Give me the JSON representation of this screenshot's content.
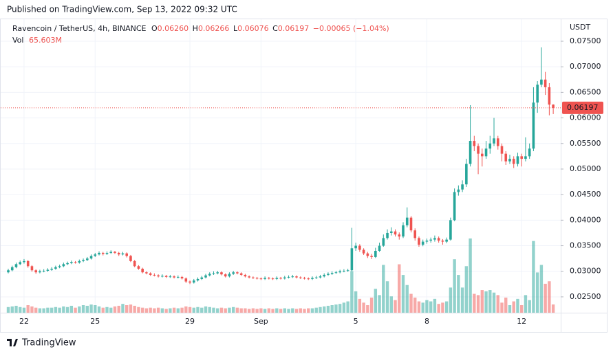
{
  "header": "Published on TradingView.com, Sep 13, 2022 09:32 UTC",
  "footer": "TradingView",
  "chart_data": {
    "type": "candlestick",
    "legend": {
      "symbol": "Ravencoin / TetherUS, 4h, BINANCE",
      "o_label": "O",
      "open": "0.06260",
      "h_label": "H",
      "high": "0.06266",
      "l_label": "L",
      "low": "0.06076",
      "c_label": "C",
      "close": "0.06197",
      "change": "−0.00065 (−1.04%)",
      "vol_label": "Vol",
      "volume": "65.603M"
    },
    "y_axis_label": "USDT",
    "last_price": {
      "value": 0.06197,
      "label": "0.06197"
    },
    "up_color": "#26a69a",
    "down_color": "#ef5350",
    "grid": true,
    "ylim": [
      0.0219,
      0.0793
    ],
    "yticks": [
      {
        "value": 0.025,
        "label": "0.02500"
      },
      {
        "value": 0.03,
        "label": "0.03000"
      },
      {
        "value": 0.035,
        "label": "0.03500"
      },
      {
        "value": 0.04,
        "label": "0.04000"
      },
      {
        "value": 0.045,
        "label": "0.04500"
      },
      {
        "value": 0.05,
        "label": "0.05000"
      },
      {
        "value": 0.055,
        "label": "0.05500"
      },
      {
        "value": 0.06,
        "label": "0.06000"
      },
      {
        "value": 0.065,
        "label": "0.06500"
      },
      {
        "value": 0.07,
        "label": "0.07000"
      },
      {
        "value": 0.075,
        "label": "0.07500"
      }
    ],
    "xticks": [
      {
        "value": 4,
        "label": "22"
      },
      {
        "value": 22,
        "label": "25"
      },
      {
        "value": 46,
        "label": "29"
      },
      {
        "value": 64,
        "label": "Sep"
      },
      {
        "value": 88,
        "label": "5"
      },
      {
        "value": 106,
        "label": "8"
      },
      {
        "value": 130,
        "label": "12"
      }
    ],
    "candles": [
      [
        0.0298,
        0.0305,
        0.0296,
        0.0302
      ],
      [
        0.0302,
        0.0311,
        0.03,
        0.0308
      ],
      [
        0.0308,
        0.0317,
        0.0306,
        0.0314
      ],
      [
        0.0314,
        0.0321,
        0.0312,
        0.0318
      ],
      [
        0.0318,
        0.0324,
        0.0315,
        0.032
      ],
      [
        0.032,
        0.0322,
        0.0307,
        0.031
      ],
      [
        0.031,
        0.0312,
        0.0299,
        0.0302
      ],
      [
        0.0302,
        0.0304,
        0.0295,
        0.0298
      ],
      [
        0.0298,
        0.0303,
        0.0296,
        0.03
      ],
      [
        0.03,
        0.0304,
        0.0298,
        0.0301
      ],
      [
        0.0301,
        0.0306,
        0.0299,
        0.0303
      ],
      [
        0.0303,
        0.0308,
        0.0301,
        0.0305
      ],
      [
        0.0305,
        0.0311,
        0.0303,
        0.0308
      ],
      [
        0.0308,
        0.0313,
        0.0306,
        0.031
      ],
      [
        0.031,
        0.0317,
        0.0308,
        0.0314
      ],
      [
        0.0314,
        0.0319,
        0.0312,
        0.0316
      ],
      [
        0.0316,
        0.0321,
        0.0314,
        0.0318
      ],
      [
        0.0318,
        0.032,
        0.0315,
        0.0317
      ],
      [
        0.0317,
        0.0323,
        0.0315,
        0.032
      ],
      [
        0.032,
        0.0325,
        0.0318,
        0.0322
      ],
      [
        0.0322,
        0.0328,
        0.032,
        0.0325
      ],
      [
        0.0325,
        0.0333,
        0.0323,
        0.033
      ],
      [
        0.033,
        0.0336,
        0.0328,
        0.0333
      ],
      [
        0.0333,
        0.0339,
        0.0331,
        0.0336
      ],
      [
        0.0336,
        0.0338,
        0.0331,
        0.0334
      ],
      [
        0.0334,
        0.0339,
        0.0332,
        0.0336
      ],
      [
        0.0336,
        0.0341,
        0.0334,
        0.0338
      ],
      [
        0.0338,
        0.034,
        0.0334,
        0.0336
      ],
      [
        0.0336,
        0.0338,
        0.033,
        0.0333
      ],
      [
        0.0333,
        0.0338,
        0.0331,
        0.0335
      ],
      [
        0.0335,
        0.0337,
        0.0327,
        0.033
      ],
      [
        0.033,
        0.0332,
        0.0318,
        0.032
      ],
      [
        0.032,
        0.0322,
        0.0308,
        0.031
      ],
      [
        0.031,
        0.0312,
        0.0303,
        0.0305
      ],
      [
        0.0305,
        0.0307,
        0.0296,
        0.0298
      ],
      [
        0.0298,
        0.03,
        0.0294,
        0.0296
      ],
      [
        0.0296,
        0.0298,
        0.0291,
        0.0293
      ],
      [
        0.0293,
        0.0296,
        0.029,
        0.0292
      ],
      [
        0.0292,
        0.0294,
        0.0288,
        0.029
      ],
      [
        0.029,
        0.0294,
        0.0288,
        0.0291
      ],
      [
        0.0291,
        0.0293,
        0.0287,
        0.0289
      ],
      [
        0.0289,
        0.0293,
        0.0287,
        0.029
      ],
      [
        0.029,
        0.0292,
        0.0286,
        0.0288
      ],
      [
        0.0288,
        0.0292,
        0.0286,
        0.0289
      ],
      [
        0.0289,
        0.0291,
        0.0284,
        0.0286
      ],
      [
        0.0286,
        0.0288,
        0.0277,
        0.028
      ],
      [
        0.028,
        0.0282,
        0.0275,
        0.0278
      ],
      [
        0.0278,
        0.0285,
        0.0276,
        0.0282
      ],
      [
        0.0282,
        0.0288,
        0.028,
        0.0285
      ],
      [
        0.0285,
        0.0291,
        0.0283,
        0.0288
      ],
      [
        0.0288,
        0.0295,
        0.0286,
        0.0292
      ],
      [
        0.0292,
        0.0298,
        0.029,
        0.0295
      ],
      [
        0.0295,
        0.03,
        0.0293,
        0.0296
      ],
      [
        0.0296,
        0.0301,
        0.0294,
        0.0298
      ],
      [
        0.0298,
        0.03,
        0.0292,
        0.0294
      ],
      [
        0.0294,
        0.0296,
        0.0288,
        0.029
      ],
      [
        0.029,
        0.0298,
        0.0288,
        0.0295
      ],
      [
        0.0295,
        0.0301,
        0.0293,
        0.0298
      ],
      [
        0.0298,
        0.03,
        0.0294,
        0.0296
      ],
      [
        0.0296,
        0.0298,
        0.0291,
        0.0293
      ],
      [
        0.0293,
        0.0295,
        0.0288,
        0.029
      ],
      [
        0.029,
        0.0292,
        0.0286,
        0.0288
      ],
      [
        0.0288,
        0.029,
        0.0285,
        0.0287
      ],
      [
        0.0287,
        0.0289,
        0.0284,
        0.0286
      ],
      [
        0.0286,
        0.0288,
        0.0283,
        0.0285
      ],
      [
        0.0285,
        0.029,
        0.0283,
        0.0287
      ],
      [
        0.0287,
        0.0289,
        0.0284,
        0.0286
      ],
      [
        0.0286,
        0.0288,
        0.0283,
        0.0285
      ],
      [
        0.0285,
        0.029,
        0.0283,
        0.0287
      ],
      [
        0.0287,
        0.0289,
        0.0284,
        0.0286
      ],
      [
        0.0286,
        0.0291,
        0.0284,
        0.0288
      ],
      [
        0.0288,
        0.0292,
        0.0286,
        0.0289
      ],
      [
        0.0289,
        0.0293,
        0.0287,
        0.029
      ],
      [
        0.029,
        0.0292,
        0.0286,
        0.0288
      ],
      [
        0.0288,
        0.029,
        0.0285,
        0.0287
      ],
      [
        0.0287,
        0.0289,
        0.0284,
        0.0286
      ],
      [
        0.0286,
        0.0288,
        0.0283,
        0.0285
      ],
      [
        0.0285,
        0.029,
        0.0283,
        0.0287
      ],
      [
        0.0287,
        0.0291,
        0.0285,
        0.0288
      ],
      [
        0.0288,
        0.0293,
        0.0286,
        0.029
      ],
      [
        0.029,
        0.0296,
        0.0288,
        0.0293
      ],
      [
        0.0293,
        0.0298,
        0.0291,
        0.0295
      ],
      [
        0.0295,
        0.03,
        0.0293,
        0.0297
      ],
      [
        0.0297,
        0.0301,
        0.0295,
        0.0298
      ],
      [
        0.0298,
        0.0303,
        0.0296,
        0.03
      ],
      [
        0.03,
        0.0304,
        0.0298,
        0.0301
      ],
      [
        0.0301,
        0.0305,
        0.0299,
        0.0302
      ],
      [
        0.0302,
        0.0385,
        0.03,
        0.0345
      ],
      [
        0.0345,
        0.0356,
        0.034,
        0.035
      ],
      [
        0.035,
        0.0353,
        0.0338,
        0.0342
      ],
      [
        0.0342,
        0.0345,
        0.0332,
        0.0335
      ],
      [
        0.0335,
        0.0338,
        0.0326,
        0.033
      ],
      [
        0.033,
        0.0334,
        0.0324,
        0.0328
      ],
      [
        0.0328,
        0.0346,
        0.0326,
        0.034
      ],
      [
        0.034,
        0.0356,
        0.0338,
        0.035
      ],
      [
        0.035,
        0.0372,
        0.0348,
        0.0365
      ],
      [
        0.0365,
        0.0382,
        0.0362,
        0.0375
      ],
      [
        0.0375,
        0.0386,
        0.037,
        0.0378
      ],
      [
        0.0378,
        0.0382,
        0.0368,
        0.0372
      ],
      [
        0.0372,
        0.0376,
        0.0362,
        0.0368
      ],
      [
        0.0368,
        0.0396,
        0.0365,
        0.039
      ],
      [
        0.039,
        0.0425,
        0.0386,
        0.0405
      ],
      [
        0.0405,
        0.0408,
        0.0376,
        0.038
      ],
      [
        0.038,
        0.0384,
        0.036,
        0.0365
      ],
      [
        0.0365,
        0.0368,
        0.0348,
        0.0352
      ],
      [
        0.0352,
        0.0362,
        0.0349,
        0.0358
      ],
      [
        0.0358,
        0.0364,
        0.0354,
        0.036
      ],
      [
        0.036,
        0.0366,
        0.0356,
        0.0362
      ],
      [
        0.0362,
        0.037,
        0.0358,
        0.0365
      ],
      [
        0.0365,
        0.0368,
        0.0356,
        0.036
      ],
      [
        0.036,
        0.0363,
        0.0352,
        0.0358
      ],
      [
        0.0358,
        0.0366,
        0.0355,
        0.0362
      ],
      [
        0.0362,
        0.0405,
        0.036,
        0.04
      ],
      [
        0.04,
        0.0462,
        0.0398,
        0.0455
      ],
      [
        0.0455,
        0.0468,
        0.0448,
        0.046
      ],
      [
        0.046,
        0.0478,
        0.0455,
        0.047
      ],
      [
        0.047,
        0.052,
        0.0465,
        0.051
      ],
      [
        0.051,
        0.0625,
        0.0505,
        0.0555
      ],
      [
        0.0555,
        0.0565,
        0.0535,
        0.0545
      ],
      [
        0.0545,
        0.055,
        0.049,
        0.053
      ],
      [
        0.053,
        0.054,
        0.0505,
        0.0525
      ],
      [
        0.0525,
        0.0555,
        0.052,
        0.054
      ],
      [
        0.054,
        0.0565,
        0.053,
        0.055
      ],
      [
        0.055,
        0.06,
        0.0545,
        0.056
      ],
      [
        0.056,
        0.0565,
        0.0538,
        0.0545
      ],
      [
        0.0545,
        0.055,
        0.0515,
        0.053
      ],
      [
        0.053,
        0.0535,
        0.0508,
        0.0515
      ],
      [
        0.0515,
        0.0528,
        0.051,
        0.052
      ],
      [
        0.052,
        0.0525,
        0.0502,
        0.051
      ],
      [
        0.051,
        0.0532,
        0.0505,
        0.0525
      ],
      [
        0.0525,
        0.053,
        0.0505,
        0.052
      ],
      [
        0.052,
        0.0562,
        0.0515,
        0.0525
      ],
      [
        0.0525,
        0.055,
        0.052,
        0.054
      ],
      [
        0.054,
        0.066,
        0.0535,
        0.063
      ],
      [
        0.063,
        0.0672,
        0.061,
        0.0665
      ],
      [
        0.0665,
        0.0738,
        0.066,
        0.0675
      ],
      [
        0.0675,
        0.069,
        0.0645,
        0.066
      ],
      [
        0.066,
        0.0668,
        0.0605,
        0.0626
      ],
      [
        0.0626,
        0.06266,
        0.06076,
        0.06197
      ]
    ],
    "volume": [
      45,
      50,
      55,
      45,
      40,
      60,
      50,
      40,
      35,
      35,
      40,
      40,
      45,
      40,
      50,
      45,
      55,
      40,
      50,
      60,
      55,
      65,
      60,
      50,
      40,
      45,
      40,
      50,
      55,
      70,
      60,
      65,
      55,
      45,
      40,
      35,
      40,
      35,
      40,
      35,
      30,
      35,
      40,
      35,
      40,
      50,
      45,
      40,
      45,
      40,
      50,
      45,
      40,
      35,
      40,
      35,
      40,
      45,
      40,
      35,
      35,
      30,
      35,
      30,
      35,
      30,
      35,
      30,
      35,
      30,
      35,
      30,
      35,
      30,
      35,
      30,
      35,
      35,
      40,
      45,
      50,
      55,
      60,
      65,
      70,
      80,
      90,
      330,
      170,
      110,
      80,
      60,
      120,
      190,
      140,
      380,
      250,
      130,
      100,
      385,
      300,
      220,
      150,
      120,
      90,
      80,
      100,
      90,
      110,
      70,
      80,
      90,
      200,
      425,
      300,
      200,
      370,
      590,
      150,
      140,
      180,
      170,
      180,
      160,
      140,
      80,
      120,
      60,
      90,
      110,
      60,
      140,
      100,
      570,
      320,
      380,
      230,
      250,
      65.603
    ]
  }
}
